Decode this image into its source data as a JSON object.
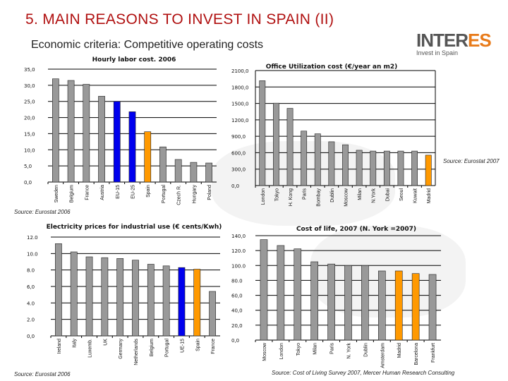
{
  "header": {
    "title": "5. MAIN REASONS TO INVEST IN SPAIN (II)",
    "subtitle": "Economic criteria: Competitive operating costs"
  },
  "logo": {
    "name": "INTERES",
    "tagline": "Invest in Spain"
  },
  "colors": {
    "gray": "#999999",
    "blue": "#0000ee",
    "orange": "#ff9900",
    "title": "#b01010"
  },
  "chart_data": [
    {
      "type": "bar",
      "title": "Hourly labor cost. 2006",
      "ylim": [
        0,
        35
      ],
      "yticks": [
        0,
        5,
        10,
        15,
        20,
        25,
        30,
        35
      ],
      "ytick_labels": [
        "0,0",
        "5,0",
        "10,0",
        "15,0",
        "20,0",
        "25,0",
        "30,0",
        "35,0"
      ],
      "categories": [
        "Sweden",
        "Belgium",
        "France",
        "Austria",
        "EU-15",
        "EU-25",
        "Spain",
        "Portugal",
        "Czech R.",
        "Hungary",
        "Poland"
      ],
      "values": [
        32.0,
        31.5,
        30.3,
        26.6,
        25.0,
        21.8,
        15.6,
        10.9,
        7.0,
        6.1,
        5.9
      ],
      "bar_colors": [
        "gray",
        "gray",
        "gray",
        "gray",
        "blue",
        "blue",
        "orange",
        "gray",
        "gray",
        "gray",
        "gray"
      ],
      "grid": true,
      "source": "Source: Eurostat 2006"
    },
    {
      "type": "bar",
      "title": "Office Utilization cost (€/year an m2)",
      "ylim": [
        0,
        2100
      ],
      "yticks": [
        0,
        300,
        600,
        900,
        1200,
        1500,
        1800,
        2100
      ],
      "ytick_labels": [
        "0,0",
        "300,0",
        "600,0",
        "900,0",
        "1200,0",
        "1500,0",
        "1800,0",
        "2100,0"
      ],
      "categories": [
        "London",
        "Tokyo",
        "H. Kong",
        "Paris",
        "Bombay",
        "Dublin",
        "Moscow",
        "Milan",
        "N.York",
        "Dubai",
        "Seoul",
        "Kuwait",
        "Madrid"
      ],
      "values": [
        1915,
        1505,
        1410,
        995,
        945,
        800,
        745,
        645,
        630,
        630,
        630,
        630,
        555
      ],
      "bar_colors": [
        "gray",
        "gray",
        "gray",
        "gray",
        "gray",
        "gray",
        "gray",
        "gray",
        "gray",
        "gray",
        "gray",
        "gray",
        "orange"
      ],
      "grid": true,
      "source": "Source: Eurostat 2007"
    },
    {
      "type": "bar",
      "title": "Electricity prices for industrial use (€ cents/Kwh)",
      "ylim": [
        0,
        12
      ],
      "yticks": [
        0,
        2,
        4,
        6,
        8,
        10,
        12
      ],
      "ytick_labels": [
        "0,0",
        "2.0",
        "4.0",
        "6,0",
        "8.0",
        "10.0",
        "12.0"
      ],
      "categories": [
        "Ireland",
        "Italy",
        "Luxemb.",
        "UK",
        "Germany",
        "Netherlands",
        "Belgium",
        "Portugal",
        "UE-15",
        "Spain",
        "France"
      ],
      "values": [
        11.2,
        10.2,
        9.6,
        9.5,
        9.4,
        9.2,
        8.7,
        8.5,
        8.3,
        8.1,
        5.4
      ],
      "bar_colors": [
        "gray",
        "gray",
        "gray",
        "gray",
        "gray",
        "gray",
        "gray",
        "gray",
        "blue",
        "orange",
        "gray"
      ],
      "grid": true,
      "source": "Source: Eurostat 2006"
    },
    {
      "type": "bar",
      "title": "Cost of life, 2007 (N. York =2007)",
      "ylim": [
        0,
        140
      ],
      "yticks": [
        0,
        20,
        40,
        60,
        80,
        100,
        120,
        140
      ],
      "ytick_labels": [
        "0,0",
        "20,0",
        "40,0",
        "60,0",
        "80.0",
        "100.0",
        "120.0",
        "140,0"
      ],
      "categories": [
        "Moscow",
        "London",
        "Tokyo",
        "Milan",
        "Paris",
        "N. York",
        "Dublin",
        "Amsterdam",
        "Madrid",
        "Barcelona",
        "Frankfurt"
      ],
      "values": [
        134.7,
        126.8,
        122.3,
        105,
        102,
        100,
        100,
        92.7,
        92.7,
        89.2,
        88
      ],
      "bar_colors": [
        "gray",
        "gray",
        "gray",
        "gray",
        "gray",
        "gray",
        "gray",
        "gray",
        "orange",
        "orange",
        "gray"
      ],
      "grid": true,
      "source": "Source: Cost of Living Survey 2007, Mercer Human Research Consulting"
    }
  ]
}
